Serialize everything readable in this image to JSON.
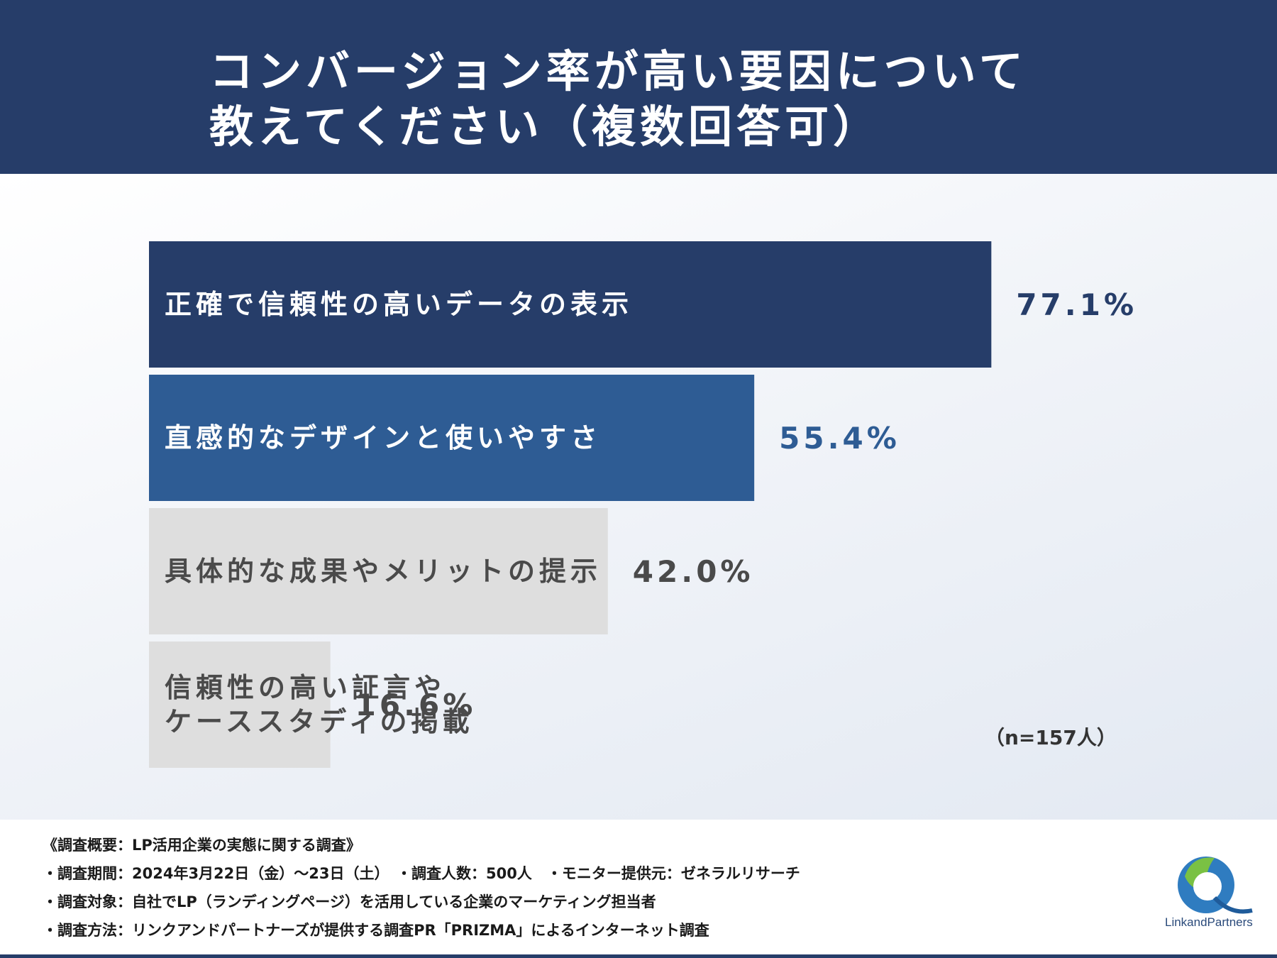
{
  "title": {
    "line1": "コンバージョン率が高い要因について",
    "line2": "教えてください（複数回答可）"
  },
  "chart_data": {
    "type": "bar",
    "orientation": "horizontal",
    "categories": [
      "正確で信頼性の高いデータの表示",
      "直感的なデザインと使いやすさ",
      "具体的な成果やメリットの提示",
      "信頼性の高い証言や\nケーススタディの掲載"
    ],
    "values": [
      77.1,
      55.4,
      42.0,
      16.6
    ],
    "value_labels": [
      "77.1%",
      "55.4%",
      "42.0%",
      "16.6%"
    ],
    "unit": "%",
    "xlim": [
      0,
      100
    ],
    "bar_colors": [
      "#263d69",
      "#2e5c94",
      "#dedede",
      "#dedede"
    ],
    "label_colors": [
      "#ffffff",
      "#ffffff",
      "#4a4a4a",
      "#4a4a4a"
    ],
    "value_colors": [
      "#263d69",
      "#2e5c94",
      "#4a4a4a",
      "#4a4a4a"
    ],
    "grid": false,
    "legend": "none"
  },
  "sample_note": "（n=157人）",
  "footer": {
    "lines": [
      "《調査概要：LP活用企業の実態に関する調査》",
      "・調査期間：2024年3月22日（金）〜23日（土）　・調査人数：500人　・モニター提供元：ゼネラルリサーチ",
      "・調査対象：自社でLP（ランディングページ）を活用している企業のマーケティング担当者",
      "・調査方法：リンクアンドパートナーズが提供する調査PR「PRIZMA」によるインターネット調査"
    ]
  },
  "logo": {
    "text": "LinkandPartners"
  }
}
